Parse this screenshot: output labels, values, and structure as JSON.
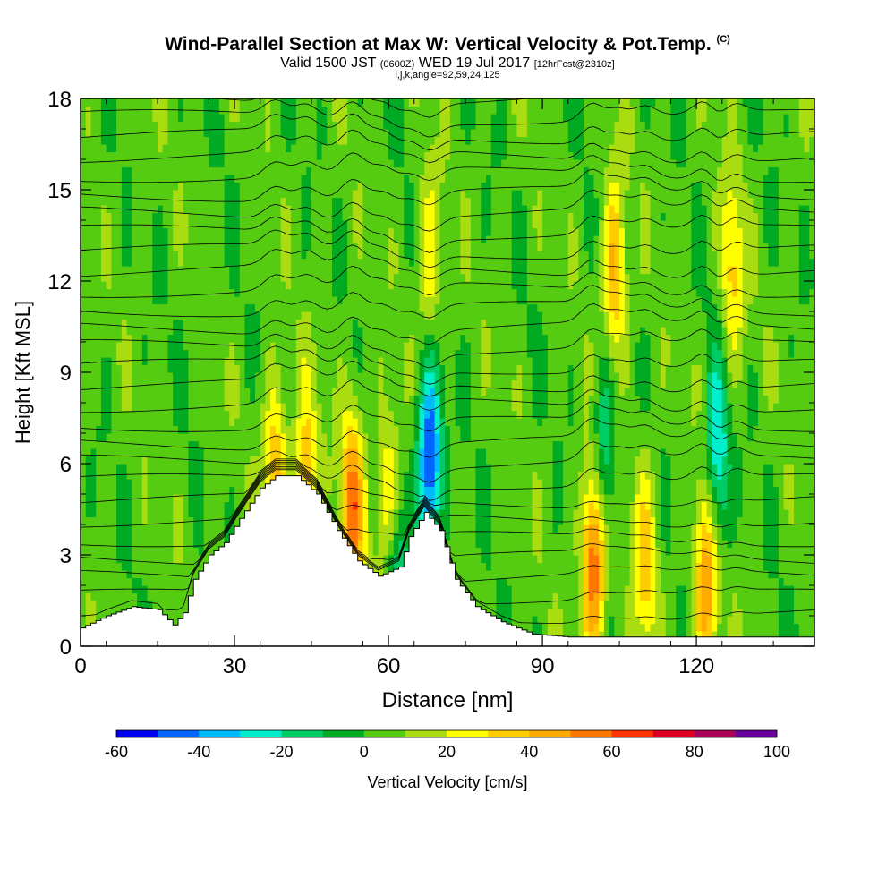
{
  "title": "Wind-Parallel Section at Max W: Vertical Velocity & Pot.Temp.",
  "title_mark": "(C)",
  "subtitle_main": "Valid 1500 JST",
  "subtitle_z": "(0600Z)",
  "subtitle_date": "WED 19 Jul 2017",
  "subtitle_fcst": "[12hrFcst@2310z]",
  "subtitle_params": "i,j,k,angle=92,59,24,125",
  "chart_data": {
    "type": "heatmap",
    "xlabel": "Distance [nm]",
    "ylabel": "Height [Kft MSL]",
    "xlim": [
      0,
      143
    ],
    "ylim": [
      0,
      18
    ],
    "x_ticks": [
      "0",
      "30",
      "60",
      "90",
      "120"
    ],
    "y_ticks": [
      "0",
      "3",
      "6",
      "9",
      "12",
      "15",
      "18"
    ],
    "colorbar_label": "Vertical Velocity [cm/s]",
    "colorbar_ticks": [
      "-60",
      "-40",
      "-20",
      "0",
      "20",
      "40",
      "60",
      "80",
      "100"
    ],
    "colorbar_range": [
      -60,
      100
    ],
    "colorbar_colors": [
      "#0000ee",
      "#0066ff",
      "#00bbff",
      "#00eecc",
      "#00cc66",
      "#00aa22",
      "#55cc11",
      "#aadd11",
      "#ffff00",
      "#ffcc00",
      "#ffaa00",
      "#ff7700",
      "#ff3300",
      "#dd0022",
      "#aa0055",
      "#660099"
    ],
    "terrain_kft": [
      [
        0,
        0.6
      ],
      [
        5,
        1.0
      ],
      [
        10,
        1.3
      ],
      [
        15,
        1.2
      ],
      [
        18,
        0.7
      ],
      [
        20,
        1.1
      ],
      [
        22,
        2.2
      ],
      [
        25,
        3.0
      ],
      [
        28,
        3.4
      ],
      [
        31,
        4.2
      ],
      [
        35,
        5.2
      ],
      [
        38,
        5.6
      ],
      [
        42,
        5.6
      ],
      [
        46,
        5.0
      ],
      [
        50,
        3.8
      ],
      [
        54,
        2.8
      ],
      [
        58,
        2.3
      ],
      [
        62,
        2.6
      ],
      [
        64,
        3.6
      ],
      [
        67,
        4.4
      ],
      [
        70,
        3.8
      ],
      [
        73,
        2.2
      ],
      [
        77,
        1.3
      ],
      [
        82,
        0.8
      ],
      [
        88,
        0.4
      ],
      [
        95,
        0.3
      ],
      [
        110,
        0.3
      ],
      [
        143,
        0.3
      ]
    ],
    "vv_features": [
      {
        "x": 38,
        "ztop": 7.5,
        "w": 40
      },
      {
        "x": 44,
        "ztop": 7.5,
        "w": 35
      },
      {
        "x": 53,
        "ztop": 6.5,
        "w": 50
      },
      {
        "x": 60,
        "ztop": 6.0,
        "w": 40
      },
      {
        "x": 61,
        "ztop": 3.0,
        "w": -40
      },
      {
        "x": 68,
        "ztop": 8.5,
        "w": -60
      },
      {
        "x": 68,
        "ztop": 17.5,
        "w": 25
      },
      {
        "x": 100,
        "ztop": 4.0,
        "w": 60
      },
      {
        "x": 102,
        "ztop": 9.0,
        "w": -30
      },
      {
        "x": 104,
        "ztop": 17.0,
        "w": 40
      },
      {
        "x": 110,
        "ztop": 4.0,
        "w": 30
      },
      {
        "x": 122,
        "ztop": 3.0,
        "w": 50
      },
      {
        "x": 124,
        "ztop": 8.5,
        "w": -40
      },
      {
        "x": 127,
        "ztop": 17.0,
        "w": 30
      }
    ]
  }
}
